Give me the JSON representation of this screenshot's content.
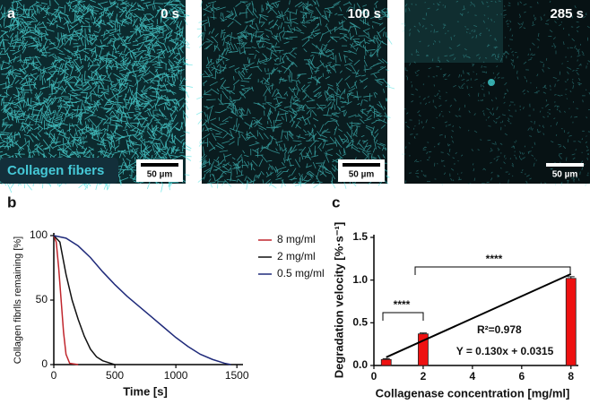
{
  "panels": [
    {
      "label": "a",
      "time": "0 s",
      "caption": "Collagen fibers",
      "scale_bar": "50 µm"
    },
    {
      "time": "100 s",
      "scale_bar": "50 µm"
    },
    {
      "time": "285 s",
      "scale_bar": "50 µm"
    }
  ],
  "chart_data": [
    {
      "type": "line",
      "panel_label": "b",
      "x_label": "Time [s]",
      "y_label": "Collagen fibrlls remaining [%]",
      "xlim": [
        0,
        1550
      ],
      "xticks": [
        0,
        500,
        1000,
        1500
      ],
      "ylim": [
        0,
        100
      ],
      "yticks": [
        0,
        50,
        100
      ],
      "series": [
        {
          "name": "8 mg/ml",
          "color": "#c0262d",
          "x": [
            0,
            20,
            40,
            60,
            80,
            100,
            130,
            200
          ],
          "values": [
            100,
            95,
            75,
            50,
            25,
            8,
            1,
            0
          ]
        },
        {
          "name": "2 mg/ml",
          "color": "#111111",
          "x": [
            0,
            50,
            100,
            150,
            200,
            250,
            300,
            350,
            400,
            500
          ],
          "values": [
            100,
            95,
            70,
            50,
            35,
            22,
            12,
            6,
            3,
            0
          ]
        },
        {
          "name": "0.5 mg/ml",
          "color": "#1f2a7a",
          "x": [
            0,
            100,
            200,
            300,
            400,
            500,
            600,
            700,
            800,
            900,
            1000,
            1100,
            1200,
            1300,
            1400,
            1450
          ],
          "values": [
            100,
            98,
            92,
            83,
            72,
            62,
            53,
            45,
            37,
            29,
            21,
            14,
            8,
            4,
            1,
            0
          ]
        }
      ]
    },
    {
      "type": "bar",
      "panel_label": "c",
      "x_label": "Collagenase concentration [mg/ml]",
      "y_label": "Degradation velocity [%·s⁻¹]",
      "x": [
        0.5,
        2,
        8
      ],
      "values": [
        0.07,
        0.37,
        1.02
      ],
      "errors": [
        0.01,
        0.01,
        0.02
      ],
      "color": "#ee1111",
      "xlim": [
        0,
        8.3
      ],
      "xticks": [
        0,
        2,
        4,
        6,
        8
      ],
      "ylim": [
        0,
        1.5
      ],
      "yticks": [
        {
          "value": 0,
          "label": "0.0"
        },
        {
          "value": 0.5,
          "label": "0.5"
        },
        {
          "value": 1,
          "label": "1.0"
        },
        {
          "value": 1.5,
          "label": "1.5"
        }
      ],
      "fit": {
        "slope": 0.13,
        "intercept": 0.0315,
        "label": "Y = 0.130x + 0.0315"
      },
      "r2_label": "R²=0.978",
      "annotations": [
        "****",
        "****"
      ]
    }
  ]
}
